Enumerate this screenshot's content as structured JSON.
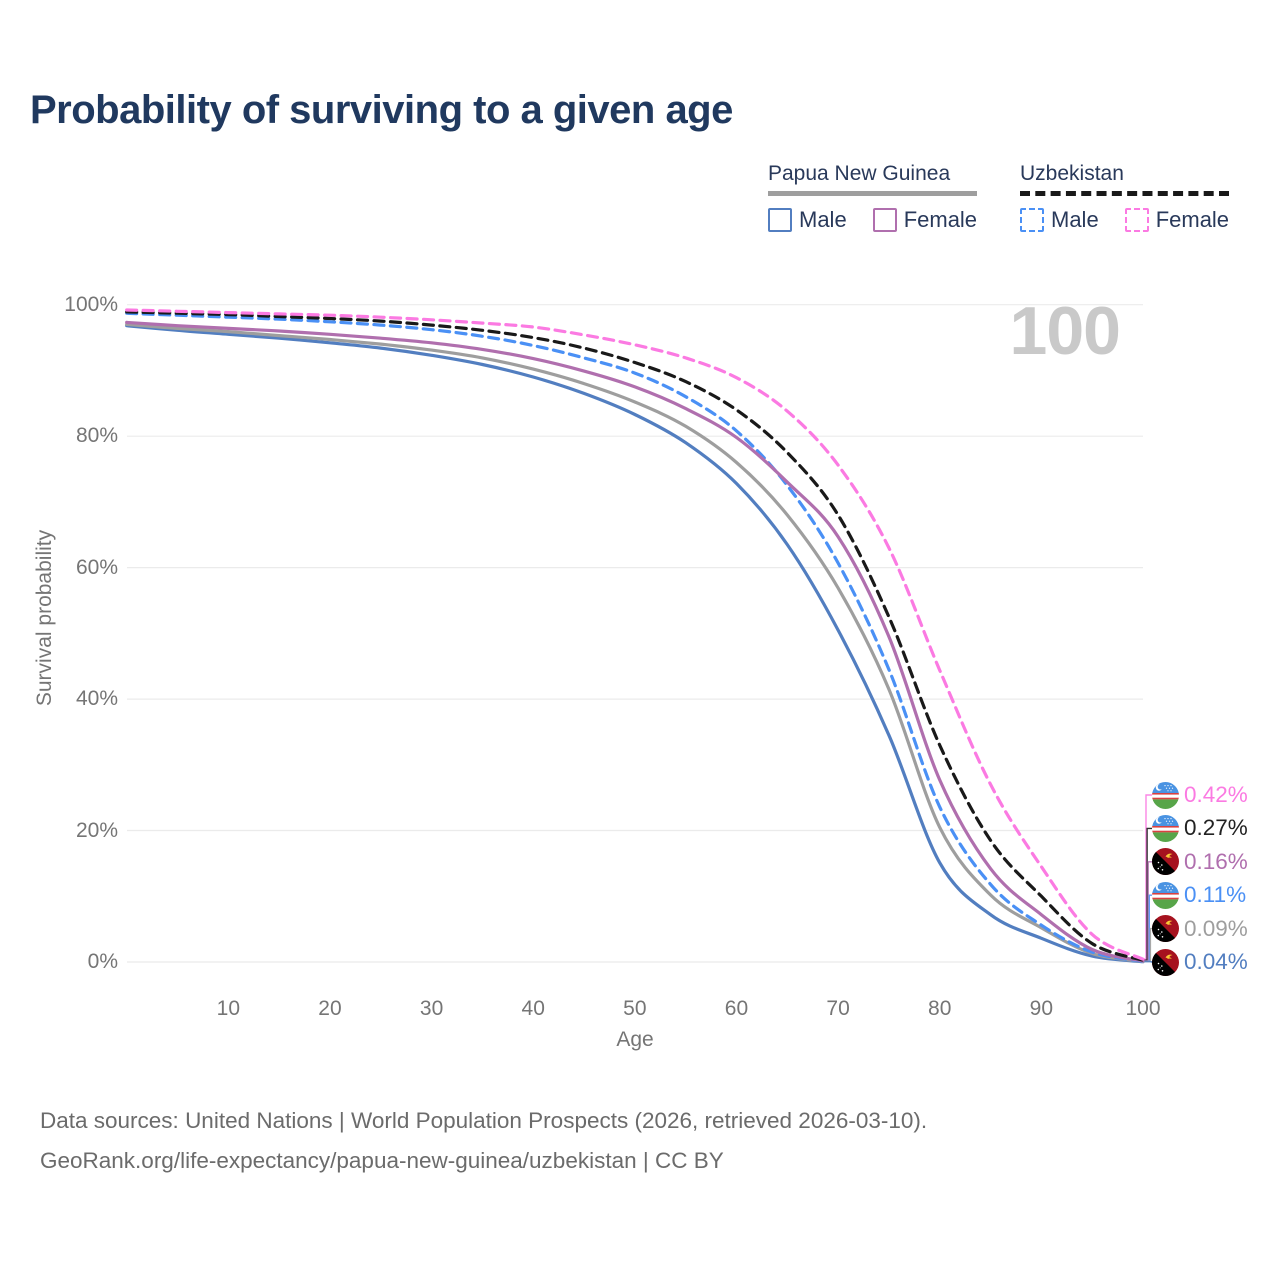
{
  "title": "Probability of surviving to a given age",
  "watermark": "100",
  "legend": {
    "groups": [
      {
        "name": "Papua New Guinea",
        "underline_style": "solid",
        "underline_color": "#9e9e9e",
        "items": [
          {
            "label": "Male",
            "color": "#527ec0",
            "dashed": false
          },
          {
            "label": "Female",
            "color": "#b06fae",
            "dashed": false
          }
        ]
      },
      {
        "name": "Uzbekistan",
        "underline_style": "dashed",
        "underline_color": "#191919",
        "items": [
          {
            "label": "Male",
            "color": "#4a90f5",
            "dashed": true
          },
          {
            "label": "Female",
            "color": "#fb7ae2",
            "dashed": true
          }
        ]
      }
    ]
  },
  "chart_data": {
    "type": "line",
    "title": "Probability of surviving to a given age",
    "xlabel": "Age",
    "ylabel": "Survival probability",
    "xlim": [
      0,
      100
    ],
    "ylim": [
      0,
      100
    ],
    "grid": "horizontal-only",
    "legend_position": "top-right",
    "x_ticks": [
      10,
      20,
      30,
      40,
      50,
      60,
      70,
      80,
      90,
      100
    ],
    "y_tick_values": [
      0,
      20,
      40,
      60,
      80,
      100
    ],
    "y_ticks": [
      "0%",
      "20%",
      "40%",
      "60%",
      "80%",
      "100%"
    ],
    "x": [
      0,
      5,
      10,
      15,
      20,
      25,
      30,
      35,
      40,
      45,
      50,
      55,
      60,
      65,
      70,
      75,
      80,
      85,
      90,
      95,
      100
    ],
    "series": [
      {
        "name": "Uzbekistan Female",
        "country": "Uzbekistan",
        "sex": "Female",
        "flag": "uz",
        "color": "#fb7ae2",
        "line_style": "dashed",
        "end_label": "0.42%",
        "values": [
          99.2,
          99.0,
          98.8,
          98.6,
          98.4,
          98.1,
          97.7,
          97.2,
          96.6,
          95.4,
          93.9,
          91.9,
          88.9,
          83.8,
          75.6,
          63.0,
          44.4,
          27.0,
          14.5,
          4.2,
          0.42
        ]
      },
      {
        "name": "Uzbekistan Both sexes",
        "country": "Uzbekistan",
        "sex": "Both",
        "flag": "uz",
        "color": "#191919",
        "line_style": "dashed",
        "end_label": "0.27%",
        "values": [
          98.9,
          98.7,
          98.5,
          98.2,
          97.9,
          97.5,
          96.9,
          96.1,
          95.0,
          93.4,
          91.2,
          88.3,
          84.0,
          77.5,
          68.0,
          52.5,
          33.0,
          18.5,
          10.0,
          2.8,
          0.27
        ]
      },
      {
        "name": "Papua New Guinea Female",
        "country": "Papua New Guinea",
        "sex": "Female",
        "flag": "pg",
        "color": "#b06fae",
        "line_style": "solid",
        "end_label": "0.16%",
        "values": [
          97.3,
          96.8,
          96.4,
          96.0,
          95.5,
          94.9,
          94.2,
          93.2,
          91.8,
          89.9,
          87.5,
          84.2,
          79.8,
          73.0,
          64.7,
          49.5,
          27.7,
          14.2,
          7.2,
          1.9,
          0.16
        ]
      },
      {
        "name": "Uzbekistan Male",
        "country": "Uzbekistan",
        "sex": "Male",
        "flag": "uz",
        "color": "#4a90f5",
        "line_style": "dashed",
        "end_label": "0.11%",
        "values": [
          98.7,
          98.4,
          98.1,
          97.8,
          97.4,
          96.9,
          96.2,
          95.2,
          93.8,
          91.9,
          89.6,
          86.0,
          80.8,
          72.5,
          60.7,
          44.5,
          23.6,
          11.8,
          5.6,
          1.5,
          0.11
        ]
      },
      {
        "name": "Papua New Guinea Both sexes",
        "country": "Papua New Guinea",
        "sex": "Both",
        "flag": "pg",
        "color": "#9e9e9e",
        "line_style": "solid",
        "end_label": "0.09%",
        "values": [
          97.0,
          96.4,
          95.9,
          95.3,
          94.7,
          94.0,
          93.1,
          91.9,
          90.2,
          88.0,
          85.2,
          81.5,
          76.0,
          68.0,
          56.9,
          41.5,
          20.5,
          10.2,
          5.2,
          1.3,
          0.09
        ]
      },
      {
        "name": "Papua New Guinea Male",
        "country": "Papua New Guinea",
        "sex": "Male",
        "flag": "pg",
        "color": "#527ec0",
        "line_style": "solid",
        "end_label": "0.04%",
        "values": [
          96.8,
          96.1,
          95.5,
          94.9,
          94.2,
          93.4,
          92.3,
          90.9,
          89.0,
          86.5,
          83.3,
          79.0,
          72.8,
          63.5,
          50.5,
          34.5,
          15.1,
          7.2,
          3.6,
          0.9,
          0.04
        ]
      }
    ]
  },
  "footer": {
    "line1": "Data sources: United Nations | World Population Prospects (2026, retrieved 2026-03-10).",
    "line2": "GeoRank.org/life-expectancy/papua-new-guinea/uzbekistan | CC BY"
  }
}
